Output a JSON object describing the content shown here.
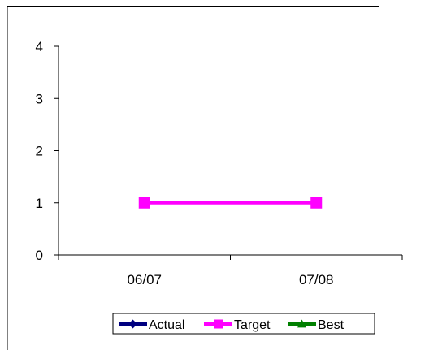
{
  "chart_data": {
    "type": "line",
    "categories": [
      "06/07",
      "07/08"
    ],
    "series": [
      {
        "name": "Actual",
        "values": [
          null,
          null
        ],
        "color": "#000080",
        "marker": "diamond"
      },
      {
        "name": "Target",
        "values": [
          1,
          1
        ],
        "color": "#ff00ff",
        "marker": "square"
      },
      {
        "name": "Best",
        "values": [
          null,
          null
        ],
        "color": "#008000",
        "marker": "triangle"
      }
    ],
    "ylim": [
      0,
      4
    ],
    "yticks": [
      "0",
      "1",
      "2",
      "3",
      "4"
    ],
    "grid": false,
    "legend_position": "bottom"
  }
}
